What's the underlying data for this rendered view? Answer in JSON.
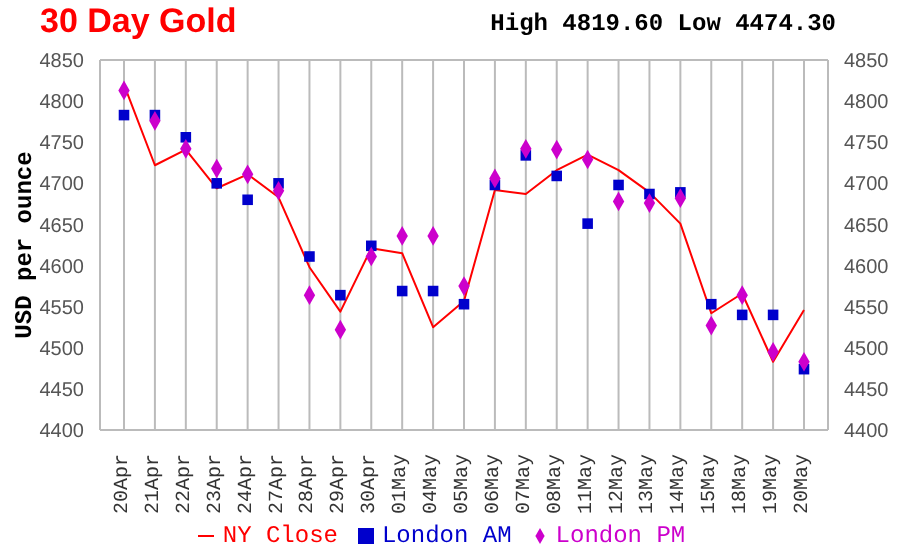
{
  "chart_data": {
    "type": "line",
    "title": "30 Day Gold",
    "subtitle": "High 4819.60 Low 4474.30",
    "ylabel": "USD per ounce",
    "categories": [
      "20Apr",
      "21Apr",
      "22Apr",
      "23Apr",
      "24Apr",
      "27Apr",
      "28Apr",
      "29Apr",
      "30Apr",
      "01May",
      "04May",
      "05May",
      "06May",
      "07May",
      "08May",
      "11May",
      "12May",
      "13May",
      "14May",
      "15May",
      "18May",
      "19May",
      "20May"
    ],
    "series": [
      {
        "name": "NY Close",
        "type": "line",
        "color": "#ff0000",
        "marker": "none",
        "values": [
          4820,
          4722,
          4741,
          4694,
          4711,
          4683,
          4598,
          4544,
          4621,
          4615,
          4525,
          4557,
          4692,
          4687,
          4716,
          4735,
          4716,
          4689,
          4651,
          4542,
          4566,
          4483,
          4546
        ]
      },
      {
        "name": "London AM",
        "type": "scatter",
        "color": "#0000cc",
        "marker": "square",
        "values": [
          4783,
          4783,
          4756,
          4700,
          4680,
          4700,
          4611,
          4564,
          4624,
          4569,
          4569,
          4553,
          4698,
          4734,
          4709,
          4651,
          4698,
          4687,
          4689,
          4553,
          4540,
          4540,
          4474
        ]
      },
      {
        "name": "London PM",
        "type": "scatter",
        "color": "#cc00cc",
        "marker": "diamond",
        "values": [
          4813,
          4776,
          4742,
          4718,
          4711,
          4691,
          4564,
          4522,
          4611,
          4636,
          4636,
          4575,
          4706,
          4742,
          4741,
          4729,
          4678,
          4676,
          4682,
          4527,
          4564,
          4495,
          4483
        ]
      }
    ],
    "ylim": [
      4400,
      4850
    ],
    "yticks": [
      4400,
      4450,
      4500,
      4550,
      4600,
      4650,
      4700,
      4750,
      4800,
      4850
    ],
    "y2lim": [
      4400,
      4850
    ],
    "y2ticks": [
      4400,
      4450,
      4500,
      4550,
      4600,
      4650,
      4700,
      4750,
      4800,
      4850
    ],
    "grid": true,
    "legend": "bottom"
  }
}
